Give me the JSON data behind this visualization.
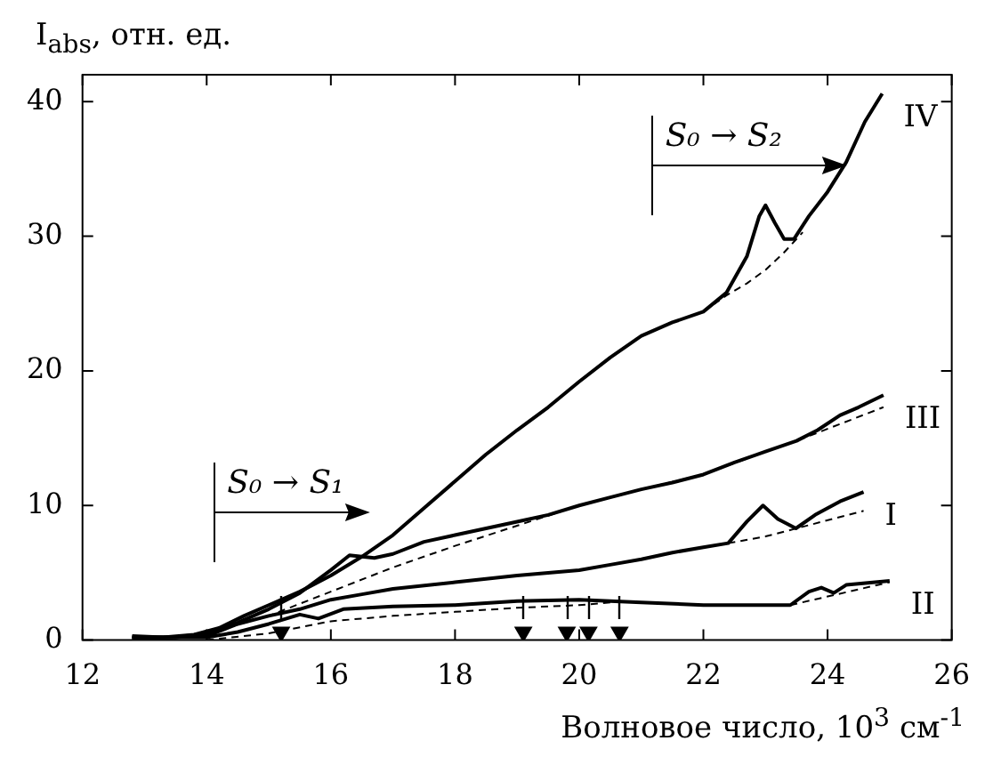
{
  "chart_data": {
    "type": "line",
    "xlabel": "Волновое число, 10$^{3}$ см$^{-1}$",
    "ylabel": "I$_{abs}$, отн. ед.",
    "xlim": [
      12,
      26
    ],
    "xticks": [
      12,
      14,
      16,
      18,
      20,
      22,
      24,
      26
    ],
    "ylim": [
      0,
      42
    ],
    "yticks": [
      0,
      10,
      20,
      30,
      40
    ],
    "grid": false,
    "legend": "right",
    "marker": "none",
    "annotations": [
      "S₀ → S₁",
      "S₀ → S₂"
    ],
    "series": [
      {
        "name": "IV",
        "color": "#000000",
        "x": [
          12.8,
          13.3,
          13.8,
          14.2,
          14.6,
          15.0,
          15.5,
          16.0,
          16.5,
          17.0,
          17.5,
          18.0,
          18.5,
          19.0,
          19.5,
          20.0,
          20.5,
          21.0,
          21.5,
          22.0,
          22.37,
          22.7,
          22.9,
          23.0,
          23.15,
          23.3,
          23.46,
          23.7,
          24.0,
          24.3,
          24.6,
          24.88
        ],
        "values": [
          0.3,
          0.2,
          0.4,
          0.9,
          1.8,
          2.6,
          3.6,
          4.8,
          6.2,
          7.8,
          9.8,
          11.8,
          13.8,
          15.6,
          17.3,
          19.2,
          21.0,
          22.6,
          23.6,
          24.4,
          25.8,
          28.5,
          31.5,
          32.3,
          31.0,
          29.8,
          29.8,
          31.5,
          33.3,
          35.5,
          38.5,
          40.6
        ]
      },
      {
        "name": "III",
        "color": "#000000",
        "x": [
          12.8,
          13.5,
          14.0,
          14.5,
          15.0,
          15.5,
          16.0,
          16.3,
          16.7,
          17.0,
          17.5,
          18.0,
          18.5,
          19.0,
          19.5,
          20.0,
          20.5,
          21.0,
          21.5,
          22.0,
          22.5,
          23.0,
          23.5,
          23.84,
          24.2,
          24.5,
          24.9
        ],
        "values": [
          0.2,
          0.2,
          0.5,
          1.3,
          2.3,
          3.5,
          5.2,
          6.3,
          6.1,
          6.4,
          7.3,
          7.8,
          8.3,
          8.8,
          9.3,
          10.0,
          10.6,
          11.2,
          11.7,
          12.3,
          13.2,
          14.0,
          14.8,
          15.6,
          16.7,
          17.3,
          18.2
        ]
      },
      {
        "name": "I",
        "color": "#000000",
        "x": [
          12.8,
          14.0,
          14.5,
          15.0,
          15.5,
          16.0,
          16.5,
          17.0,
          18.0,
          19.0,
          20.0,
          20.5,
          21.0,
          21.5,
          22.0,
          22.4,
          22.7,
          22.96,
          23.2,
          23.49,
          23.8,
          24.2,
          24.58
        ],
        "values": [
          0.1,
          0.3,
          1.2,
          1.8,
          2.3,
          3.0,
          3.4,
          3.8,
          4.3,
          4.8,
          5.2,
          5.6,
          6.0,
          6.5,
          6.9,
          7.2,
          8.8,
          10.0,
          9.0,
          8.3,
          9.3,
          10.3,
          11.0
        ]
      },
      {
        "name": "II",
        "color": "#000000",
        "x": [
          12.8,
          14.0,
          14.5,
          15.0,
          15.5,
          15.8,
          16.2,
          17.0,
          18.0,
          19.0,
          20.0,
          21.0,
          22.0,
          23.4,
          23.7,
          23.9,
          24.1,
          24.3,
          25.0
        ],
        "values": [
          0.2,
          0.2,
          0.6,
          1.2,
          1.9,
          1.6,
          2.3,
          2.5,
          2.6,
          2.9,
          3.0,
          2.8,
          2.6,
          2.6,
          3.6,
          3.9,
          3.5,
          4.1,
          4.4
        ]
      },
      {
        "color": "#000000",
        "line_style": "dashed",
        "x": [
          22.0,
          22.37,
          22.7,
          23.0,
          23.3,
          23.6
        ],
        "values": [
          24.4,
          25.6,
          26.5,
          27.5,
          28.8,
          30.3
        ]
      },
      {
        "color": "#000000",
        "line_style": "dashed",
        "x": [
          14.0,
          15.0,
          16.0,
          17.0,
          18.0,
          19.0,
          20.0,
          21.0,
          22.0,
          23.0,
          23.5,
          24.9
        ],
        "values": [
          0.5,
          1.8,
          3.6,
          5.4,
          7.0,
          8.5,
          10.0,
          11.2,
          12.3,
          14.0,
          14.8,
          17.3
        ]
      },
      {
        "color": "#000000",
        "line_style": "dashed",
        "x": [
          22.4,
          23.0,
          23.5,
          24.58
        ],
        "values": [
          7.2,
          7.7,
          8.3,
          9.6
        ]
      },
      {
        "color": "#000000",
        "line_style": "dashed",
        "x": [
          14.0,
          15.0,
          16.0,
          17.0,
          18.0,
          19.0,
          20.0,
          20.5,
          21.0,
          23.4,
          25.0
        ],
        "values": [
          0.0,
          0.5,
          1.4,
          1.8,
          2.1,
          2.4,
          2.6,
          2.8,
          null,
          2.6,
          4.3
        ]
      },
      {
        "type": "scatter",
        "color": "#000000",
        "marker": "triangle",
        "x": [
          15.2,
          19.1,
          19.8,
          20.15,
          20.65
        ],
        "values": [
          0.6,
          0.6,
          0.6,
          0.6,
          0.6
        ]
      }
    ]
  }
}
